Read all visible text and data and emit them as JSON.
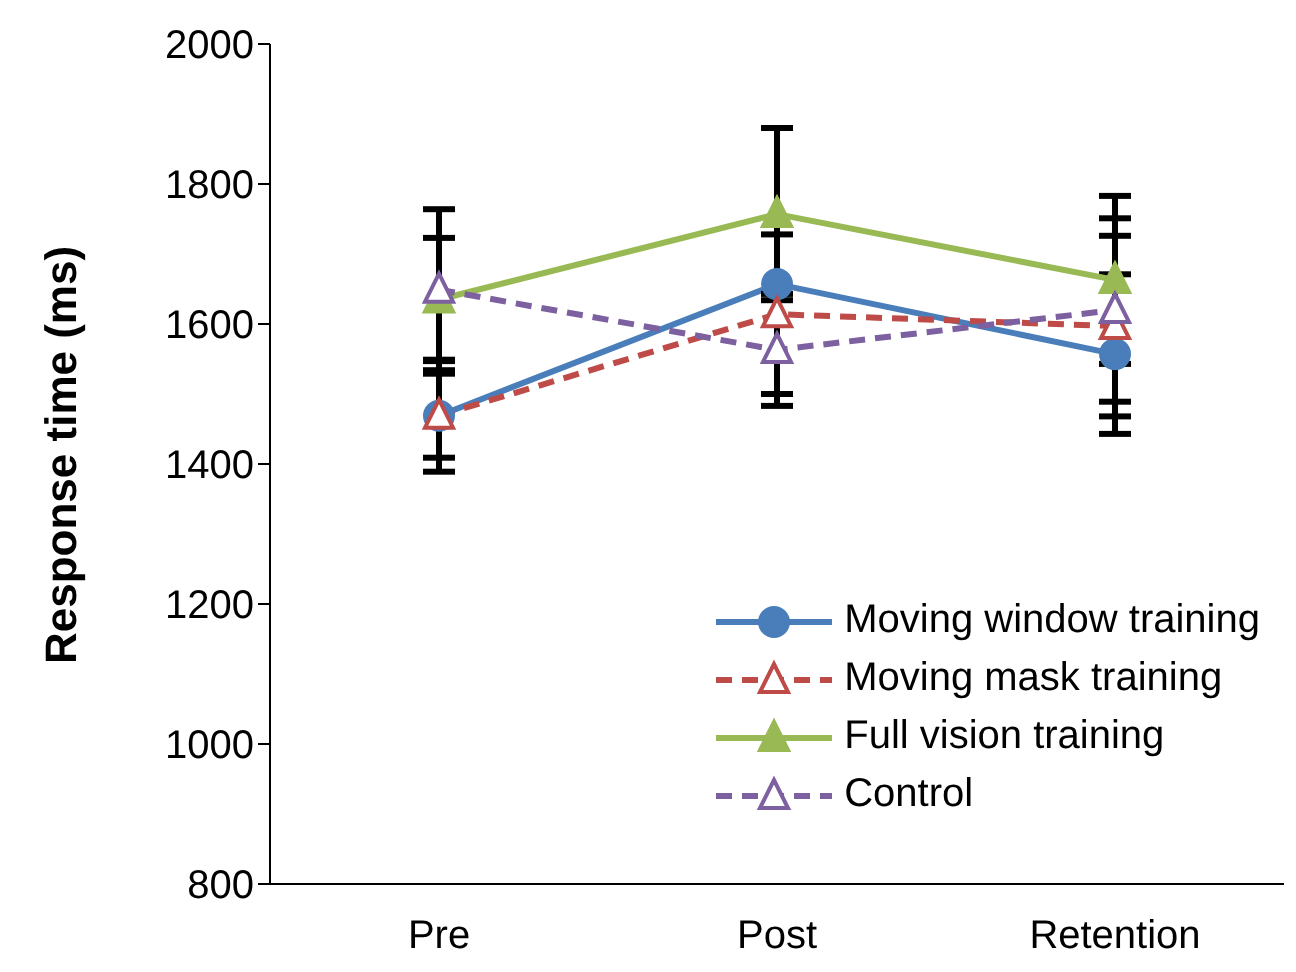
{
  "chart_data": {
    "type": "line",
    "ylabel": "Response time (ms)",
    "categories": [
      "Pre",
      "Post",
      "Retention"
    ],
    "series": [
      {
        "name": "Moving window training",
        "color": "#4a7ebb",
        "values": [
          1469,
          1657,
          1557
        ],
        "errors": [
          80,
          null,
          114
        ],
        "marker": "circle",
        "line_style": "solid"
      },
      {
        "name": "Moving mask training",
        "color": "#be4b48",
        "values": [
          1469,
          1614,
          1597
        ],
        "errors": [
          60,
          114,
          129
        ],
        "marker": "triangle",
        "line_style": "dashed"
      },
      {
        "name": "Full vision training",
        "color": "#98b954",
        "values": [
          1635,
          1757,
          1663
        ],
        "errors": [
          88,
          123,
          120
        ],
        "marker": "triangle",
        "line_style": "solid"
      },
      {
        "name": "Control",
        "color": "#7d60a0",
        "values": [
          1649,
          1563,
          1620
        ],
        "errors": [
          115,
          80,
          131
        ],
        "marker": "triangle",
        "line_style": "dashed"
      }
    ],
    "ylim": [
      800,
      2000
    ],
    "yticks": [
      800,
      1000,
      1200,
      1400,
      1600,
      1800,
      2000
    ],
    "legend": "bottom right",
    "grid": false
  }
}
